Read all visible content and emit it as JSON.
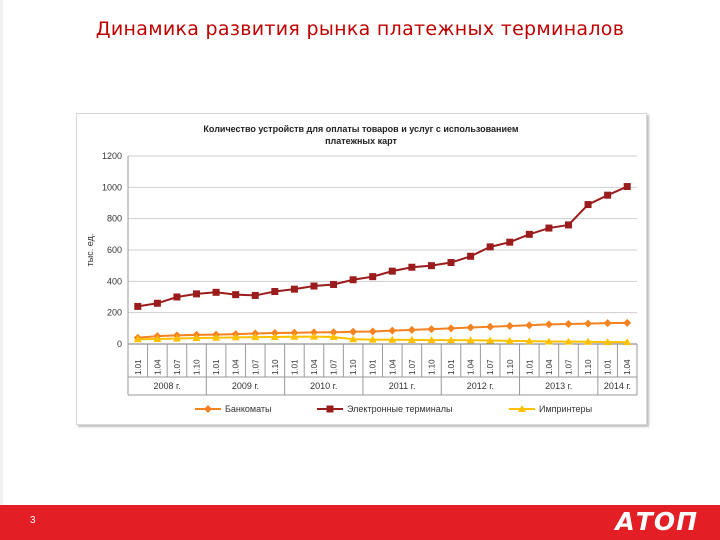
{
  "slide": {
    "title": "Динамика развития рынка платежных терминалов",
    "page_number": "3",
    "logo_text": "АТОП"
  },
  "colors": {
    "banks": "#f58220",
    "terminals": "#9b1c1c",
    "imprinters": "#ffc000",
    "accent": "#e31e24",
    "title": "#c00000"
  },
  "chart_data": {
    "type": "line",
    "title_lines": [
      "Количество устройств для оплаты товаров и услуг с использованием",
      "платежных карт"
    ],
    "ylabel": "тыс. ед.",
    "ylim": [
      0,
      1200
    ],
    "yticks": [
      0,
      200,
      400,
      600,
      800,
      1000,
      1200
    ],
    "grid": true,
    "legend_position": "bottom",
    "categories": [
      "1.01",
      "1.04",
      "1.07",
      "1.10",
      "1.01",
      "1.04",
      "1.07",
      "1.10",
      "1.01",
      "1.04",
      "1.07",
      "1.10",
      "1.01",
      "1.04",
      "1.07",
      "1.10",
      "1.01",
      "1.04",
      "1.07",
      "1.10",
      "1.01",
      "1.04",
      "1.07",
      "1.10",
      "1.01",
      "1.04"
    ],
    "year_groups": [
      {
        "label": "2008 г.",
        "count": 4
      },
      {
        "label": "2009 г.",
        "count": 4
      },
      {
        "label": "2010 г.",
        "count": 4
      },
      {
        "label": "2011 г.",
        "count": 4
      },
      {
        "label": "2012 г.",
        "count": 4
      },
      {
        "label": "2013 г.",
        "count": 4
      },
      {
        "label": "2014 г.",
        "count": 2
      }
    ],
    "series": [
      {
        "name": "Банкоматы",
        "key": "banks",
        "marker": "diamond",
        "values": [
          40,
          50,
          55,
          58,
          60,
          63,
          67,
          70,
          72,
          74,
          75,
          78,
          80,
          85,
          90,
          95,
          100,
          105,
          110,
          115,
          120,
          125,
          128,
          130,
          133,
          135
        ]
      },
      {
        "name": "Электронные терминалы",
        "key": "terminals",
        "marker": "square",
        "values": [
          240,
          260,
          300,
          320,
          330,
          315,
          310,
          335,
          350,
          370,
          380,
          410,
          430,
          465,
          490,
          500,
          520,
          560,
          620,
          650,
          700,
          740,
          760,
          890,
          950,
          1005
        ]
      },
      {
        "name": "Импринтеры",
        "key": "imprinters",
        "marker": "triangle",
        "values": [
          30,
          32,
          35,
          38,
          40,
          42,
          44,
          45,
          46,
          47,
          45,
          30,
          28,
          27,
          26,
          25,
          25,
          24,
          22,
          20,
          18,
          16,
          15,
          14,
          12,
          12
        ]
      }
    ]
  }
}
